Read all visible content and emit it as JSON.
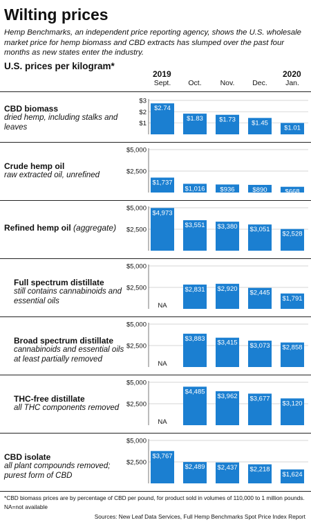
{
  "header": {
    "title": "Wilting prices",
    "subtitle": "Hemp Benchmarks, an independent price reporting agency, shows the U.S. wholesale market price for hemp biomass and CBD extracts has slumped over the past four months as new states enter the industry.",
    "section_title": "U.S. prices per kilogram*"
  },
  "years": [
    {
      "label": "2019",
      "category_index": 0
    },
    {
      "label": "2020",
      "category_index": 4
    }
  ],
  "footer": {
    "note1": "*CBD biomass prices are by percentage of CBD per pound, for product sold in volumes of 110,000 to 1 million pounds.",
    "note2": "NA=not available",
    "source": "Sources: New Leaf Data Services, Full Hemp Benchmarks Spot Price Index Report"
  },
  "colors": {
    "bar": "#1b7fd1",
    "grid": "#c8c8c8",
    "axis": "#555555"
  },
  "chart_data": [
    {
      "type": "bar",
      "title": "CBD biomass",
      "subtitle": "dried hemp, including stalks and leaves",
      "categories": [
        "Sept.",
        "Oct.",
        "Nov.",
        "Dec.",
        "Jan."
      ],
      "values": [
        2.74,
        1.83,
        1.73,
        1.45,
        1.01
      ],
      "labels": [
        "$2.74",
        "$1.83",
        "$1.73",
        "$1.45",
        "$1.01"
      ],
      "yticks": [
        1,
        2,
        3
      ],
      "ytick_labels": [
        "$1",
        "$2",
        "$3"
      ],
      "ylim": [
        0,
        3
      ]
    },
    {
      "type": "bar",
      "title": "Crude hemp oil",
      "subtitle": "raw extracted oil, unrefined",
      "categories": [
        "Sept.",
        "Oct.",
        "Nov.",
        "Dec.",
        "Jan."
      ],
      "values": [
        1737,
        1016,
        936,
        890,
        668
      ],
      "labels": [
        "$1,737",
        "$1,016",
        "$936",
        "$890",
        "$668"
      ],
      "yticks": [
        2500,
        5000
      ],
      "ytick_labels": [
        "$2,500",
        "$5,000"
      ],
      "ylim": [
        0,
        5000
      ]
    },
    {
      "type": "bar",
      "title": "Refined hemp oil",
      "title_note": "(aggregate)",
      "subtitle": "",
      "categories": [
        "Sept.",
        "Oct.",
        "Nov.",
        "Dec.",
        "Jan."
      ],
      "values": [
        4973,
        3551,
        3380,
        3051,
        2528
      ],
      "labels": [
        "$4,973",
        "$3,551",
        "$3,380",
        "$3,051",
        "$2,528"
      ],
      "yticks": [
        2500,
        5000
      ],
      "ytick_labels": [
        "$2,500",
        "$5,000"
      ],
      "ylim": [
        0,
        5000
      ]
    },
    {
      "type": "bar",
      "title": "Full spectrum distillate",
      "subtitle": "still contains cannabinoids and essential oils",
      "categories": [
        "Sept.",
        "Oct.",
        "Nov.",
        "Dec.",
        "Jan."
      ],
      "values": [
        null,
        2831,
        2920,
        2445,
        1791
      ],
      "labels": [
        "NA",
        "$2,831",
        "$2,920",
        "$2,445",
        "$1,791"
      ],
      "yticks": [
        2500,
        5000
      ],
      "ytick_labels": [
        "$2,500",
        "$5,000"
      ],
      "ylim": [
        0,
        5000
      ]
    },
    {
      "type": "bar",
      "title": "Broad spectrum distillate",
      "subtitle": "cannabinoids and essential oils at least partially removed",
      "categories": [
        "Sept.",
        "Oct.",
        "Nov.",
        "Dec.",
        "Jan."
      ],
      "values": [
        null,
        3883,
        3415,
        3073,
        2858
      ],
      "labels": [
        "NA",
        "$3,883",
        "$3,415",
        "$3,073",
        "$2,858"
      ],
      "yticks": [
        2500,
        5000
      ],
      "ytick_labels": [
        "$2,500",
        "$5,000"
      ],
      "ylim": [
        0,
        5000
      ]
    },
    {
      "type": "bar",
      "title": "THC-free distillate",
      "subtitle": "all THC components removed",
      "categories": [
        "Sept.",
        "Oct.",
        "Nov.",
        "Dec.",
        "Jan."
      ],
      "values": [
        null,
        4485,
        3962,
        3677,
        3120
      ],
      "labels": [
        "NA",
        "$4,485",
        "$3,962",
        "$3,677",
        "$3,120"
      ],
      "yticks": [
        2500,
        5000
      ],
      "ytick_labels": [
        "$2,500",
        "$5,000"
      ],
      "ylim": [
        0,
        5000
      ]
    },
    {
      "type": "bar",
      "title": "CBD isolate",
      "subtitle": "all plant compounds removed; purest form of CBD",
      "categories": [
        "Sept.",
        "Oct.",
        "Nov.",
        "Dec.",
        "Jan."
      ],
      "values": [
        3767,
        2489,
        2437,
        2218,
        1624
      ],
      "labels": [
        "$3,767",
        "$2,489",
        "$2,437",
        "$2,218",
        "$1,624"
      ],
      "yticks": [
        2500,
        5000
      ],
      "ytick_labels": [
        "$2,500",
        "$5,000"
      ],
      "ylim": [
        0,
        5000
      ]
    }
  ]
}
